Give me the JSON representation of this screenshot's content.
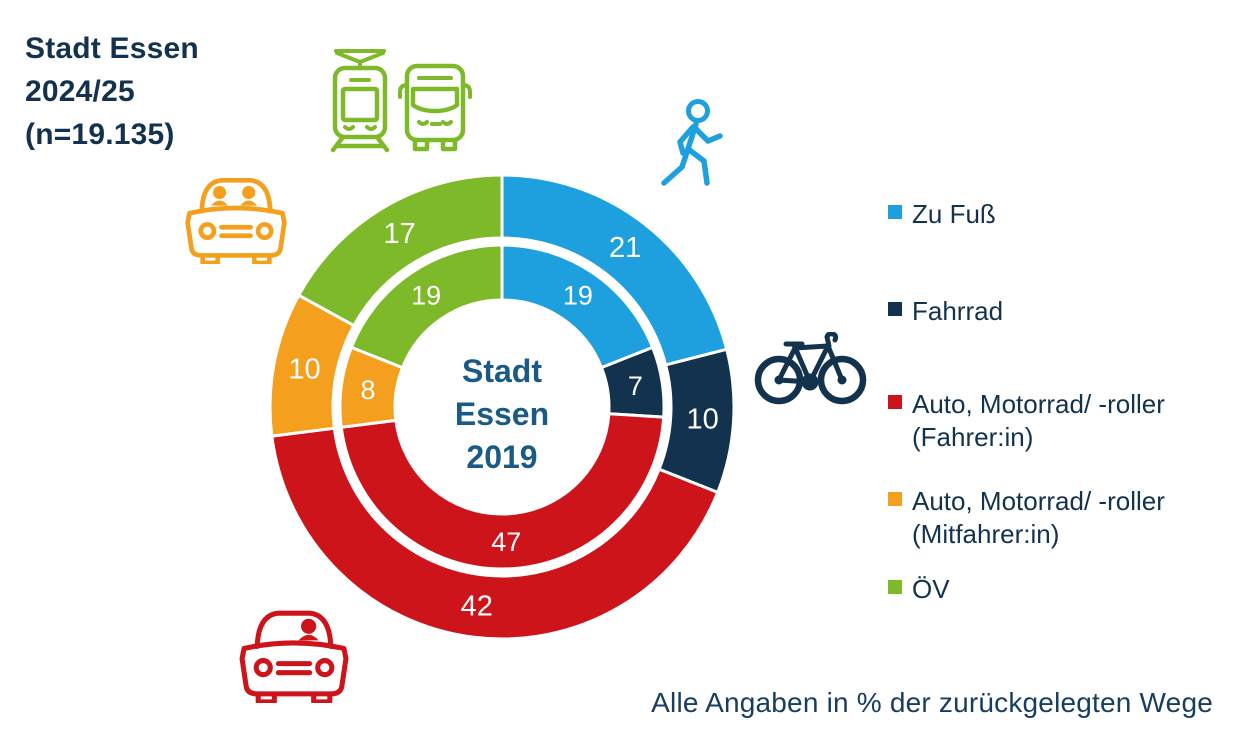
{
  "title": {
    "line1": "Stadt Essen",
    "line2": "2024/25",
    "line3": "(n=19.135)"
  },
  "center_label": {
    "line1": "Stadt",
    "line2": "Essen",
    "line3": "2019"
  },
  "footnote": "Alle Angaben in % der zurückgelegten Wege",
  "legend": {
    "items": [
      {
        "label": "Zu Fuß",
        "sublabel": "",
        "color": "#1EA0DF"
      },
      {
        "label": "Fahrrad",
        "sublabel": "",
        "color": "#13324D"
      },
      {
        "label": "Auto, Motorrad/ -roller",
        "sublabel": "(Fahrer:in)",
        "color": "#CE141B"
      },
      {
        "label": "Auto, Motorrad/ -roller",
        "sublabel": "(Mitfahrer:in)",
        "color": "#F4A01E"
      },
      {
        "label": "ÖV",
        "sublabel": "",
        "color": "#7DB928"
      }
    ]
  },
  "chart_data": {
    "type": "pie",
    "variant": "nested-donut",
    "categories": [
      "Zu Fuß",
      "Fahrrad",
      "Auto, Motorrad/ -roller (Fahrer:in)",
      "Auto, Motorrad/ -roller (Mitfahrer:in)",
      "ÖV"
    ],
    "series": [
      {
        "name": "Stadt Essen 2024/25 (n=19.135)",
        "ring": "outer",
        "values": [
          21,
          10,
          42,
          10,
          17
        ]
      },
      {
        "name": "Stadt Essen 2019",
        "ring": "inner",
        "values": [
          19,
          7,
          47,
          8,
          19
        ]
      }
    ],
    "colors": [
      "#1EA0DF",
      "#13324D",
      "#CE141B",
      "#F4A01E",
      "#7DB928"
    ],
    "unit": "%",
    "start_angle_deg": 0,
    "direction": "clockwise",
    "labels_shown": true,
    "note": "Alle Angaben in % der zurückgelegten Wege"
  },
  "icons": {
    "tram": {
      "name": "tram-icon",
      "color": "#7DB928"
    },
    "bus": {
      "name": "bus-icon",
      "color": "#7DB928"
    },
    "car_passenger": {
      "name": "car-with-passenger-icon",
      "color": "#F4A01E"
    },
    "pedestrian": {
      "name": "pedestrian-icon",
      "color": "#1EA0DF"
    },
    "bicycle": {
      "name": "bicycle-icon",
      "color": "#13324D"
    },
    "car_driver": {
      "name": "car-driver-icon",
      "color": "#CE141B"
    }
  },
  "colors": {
    "background": "#FFFFFF",
    "title_text": "#13324D",
    "center_text": "#1A5B86",
    "footnote_text": "#173D60",
    "legend_text": "#13324D",
    "segment_label_text": "#FFFFFF"
  }
}
